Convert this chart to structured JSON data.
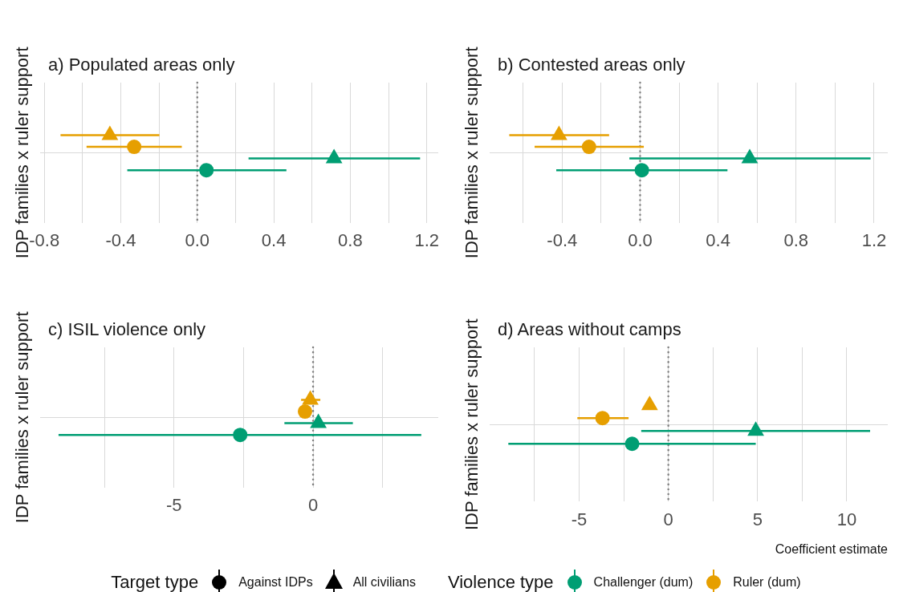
{
  "chart_data": [
    {
      "type": "scatter",
      "orientation": "horizontal",
      "title": "a) Populated areas only",
      "ylabel": "IDP families x ruler support",
      "categories": [
        null
      ],
      "xlim": [
        -0.82,
        1.26
      ],
      "xticks": [
        -0.8,
        {
          "value": -0.6,
          "label": null
        },
        -0.4,
        {
          "value": -0.2,
          "label": null
        },
        {
          "value": 0,
          "label": "0.0"
        },
        {
          "value": 0.2,
          "label": null
        },
        0.4,
        {
          "value": 0.6,
          "label": null
        },
        0.8,
        {
          "value": 1.0,
          "label": null
        },
        1.2
      ],
      "grid": true,
      "ref_lines": [
        {
          "axis": "x",
          "value": 0,
          "line_style": "dotted",
          "color": "#7f7f7f"
        }
      ],
      "series": [
        {
          "color": "#e69f00",
          "marker": "triangle",
          "values": [
            -0.457
          ],
          "errors": [
            [
              -0.715,
              -0.198
            ]
          ]
        },
        {
          "color": "#e69f00",
          "marker": "circle",
          "values": [
            -0.33
          ],
          "errors": [
            [
              -0.579,
              -0.081
            ]
          ]
        },
        {
          "color": "#009e73",
          "marker": "triangle",
          "values": [
            0.715
          ],
          "errors": [
            [
              0.268,
              1.165
            ]
          ]
        },
        {
          "color": "#009e73",
          "marker": "circle",
          "values": [
            0.048
          ],
          "errors": [
            [
              -0.366,
              0.466
            ]
          ]
        }
      ]
    },
    {
      "type": "scatter",
      "orientation": "horizontal",
      "title": "b) Contested areas only",
      "ylabel": "IDP families x ruler support",
      "categories": [
        null
      ],
      "xlim": [
        -0.77,
        1.27
      ],
      "xticks": [
        {
          "value": -0.6,
          "label": null
        },
        -0.4,
        {
          "value": -0.2,
          "label": null
        },
        {
          "value": 0,
          "label": "0.0"
        },
        {
          "value": 0.2,
          "label": null
        },
        0.4,
        {
          "value": 0.6,
          "label": null
        },
        0.8,
        {
          "value": 1.0,
          "label": null
        },
        1.2
      ],
      "grid": true,
      "ref_lines": [
        {
          "axis": "x",
          "value": 0,
          "line_style": "dotted",
          "color": "#7f7f7f"
        }
      ],
      "series": [
        {
          "color": "#e69f00",
          "marker": "triangle",
          "values": [
            -0.416
          ],
          "errors": [
            [
              -0.671,
              -0.159
            ]
          ]
        },
        {
          "color": "#e69f00",
          "marker": "circle",
          "values": [
            -0.262
          ],
          "errors": [
            [
              -0.541,
              0.019
            ]
          ]
        },
        {
          "color": "#009e73",
          "marker": "triangle",
          "values": [
            0.562
          ],
          "errors": [
            [
              -0.055,
              1.182
            ]
          ]
        },
        {
          "color": "#009e73",
          "marker": "circle",
          "values": [
            0.009
          ],
          "errors": [
            [
              -0.43,
              0.448
            ]
          ]
        }
      ]
    },
    {
      "type": "scatter",
      "orientation": "horizontal",
      "title": "c) ISIL violence only",
      "ylabel": "IDP families x ruler support",
      "categories": [
        null
      ],
      "xlim": [
        -9.8,
        4.5
      ],
      "xticks": [
        {
          "value": -7.5,
          "label": null
        },
        -5,
        {
          "value": -2.5,
          "label": null
        },
        0,
        {
          "value": 2.5,
          "label": null
        }
      ],
      "grid": true,
      "ref_lines": [
        {
          "axis": "x",
          "value": 0,
          "line_style": "dotted",
          "color": "#7f7f7f"
        }
      ],
      "series": [
        {
          "color": "#e69f00",
          "marker": "triangle",
          "values": [
            -0.1
          ],
          "errors": [
            [
              -0.43,
              0.26
            ]
          ]
        },
        {
          "color": "#e69f00",
          "marker": "circle",
          "values": [
            -0.29
          ],
          "errors": [
            null
          ]
        },
        {
          "color": "#009e73",
          "marker": "triangle",
          "values": [
            0.19
          ],
          "errors": [
            [
              -1.03,
              1.43
            ]
          ]
        },
        {
          "color": "#009e73",
          "marker": "circle",
          "values": [
            -2.62
          ],
          "errors": [
            [
              -9.15,
              3.89
            ]
          ]
        }
      ]
    },
    {
      "type": "scatter",
      "orientation": "horizontal",
      "title": "d) Areas without camps",
      "ylabel": "IDP families x ruler support",
      "xlabel": "Coefficient estimate",
      "categories": [
        null
      ],
      "xlim": [
        -10,
        12.3
      ],
      "xticks": [
        {
          "value": -7.5,
          "label": null
        },
        -5,
        {
          "value": -2.5,
          "label": null
        },
        0,
        {
          "value": 2.5,
          "label": null
        },
        5,
        {
          "value": 7.5,
          "label": null
        },
        10
      ],
      "grid": true,
      "ref_lines": [
        {
          "axis": "x",
          "value": 0,
          "line_style": "dotted",
          "color": "#7f7f7f"
        }
      ],
      "series": [
        {
          "color": "#e69f00",
          "marker": "triangle",
          "values": [
            -1.05
          ],
          "errors": [
            null
          ]
        },
        {
          "color": "#e69f00",
          "marker": "circle",
          "values": [
            -3.69
          ],
          "errors": [
            [
              -5.1,
              -2.23
            ]
          ]
        },
        {
          "color": "#009e73",
          "marker": "triangle",
          "values": [
            4.9
          ],
          "errors": [
            [
              -1.52,
              11.31
            ]
          ]
        },
        {
          "color": "#009e73",
          "marker": "circle",
          "values": [
            -2.03
          ],
          "errors": [
            [
              -8.97,
              4.9
            ]
          ]
        }
      ]
    },
    {
      "type": "other",
      "annotations": [
        "Target type",
        "Against IDPs",
        "All civilians",
        "Violence type",
        "Challenger (dum)",
        "Ruler (dum)"
      ]
    }
  ]
}
